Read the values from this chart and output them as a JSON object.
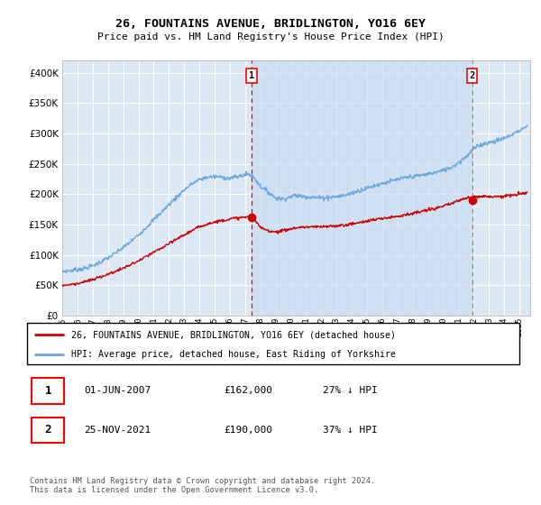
{
  "title": "26, FOUNTAINS AVENUE, BRIDLINGTON, YO16 6EY",
  "subtitle": "Price paid vs. HM Land Registry's House Price Index (HPI)",
  "plot_bg_color": "#dce9f5",
  "hpi_color": "#6fa8dc",
  "price_color": "#cc0000",
  "shade_color": "#c5d9ef",
  "ylim": [
    0,
    420000
  ],
  "yticks": [
    0,
    50000,
    100000,
    150000,
    200000,
    250000,
    300000,
    350000,
    400000
  ],
  "xlim_start": 1995.0,
  "xlim_end": 2025.7,
  "marker1_x": 2007.42,
  "marker1_y": 162000,
  "marker2_x": 2021.9,
  "marker2_y": 190000,
  "legend_label_price": "26, FOUNTAINS AVENUE, BRIDLINGTON, YO16 6EY (detached house)",
  "legend_label_hpi": "HPI: Average price, detached house, East Riding of Yorkshire",
  "footer": "Contains HM Land Registry data © Crown copyright and database right 2024.\nThis data is licensed under the Open Government Licence v3.0.",
  "table_row1": [
    "1",
    "01-JUN-2007",
    "£162,000",
    "27% ↓ HPI"
  ],
  "table_row2": [
    "2",
    "25-NOV-2021",
    "£190,000",
    "37% ↓ HPI"
  ],
  "hpi_years": [
    1995,
    1995.5,
    1996,
    1996.5,
    1997,
    1997.5,
    1998,
    1998.5,
    1999,
    1999.5,
    2000,
    2000.5,
    2001,
    2001.5,
    2002,
    2002.5,
    2003,
    2003.5,
    2004,
    2004.5,
    2005,
    2005.5,
    2006,
    2006.5,
    2007,
    2007.2,
    2007.4,
    2007.6,
    2007.8,
    2008,
    2008.5,
    2009,
    2009.5,
    2010,
    2010.3,
    2010.6,
    2011,
    2011.5,
    2012,
    2012.5,
    2013,
    2013.5,
    2014,
    2014.5,
    2015,
    2015.5,
    2016,
    2016.5,
    2017,
    2017.5,
    2018,
    2018.5,
    2019,
    2019.5,
    2020,
    2020.5,
    2021,
    2021.5,
    2022,
    2022.5,
    2023,
    2023.5,
    2024,
    2024.5,
    2025,
    2025.5
  ],
  "hpi_vals": [
    73000,
    74000,
    76000,
    78000,
    82000,
    88000,
    95000,
    103000,
    112000,
    122000,
    133000,
    145000,
    158000,
    170000,
    183000,
    195000,
    207000,
    217000,
    224000,
    228000,
    229000,
    228000,
    226000,
    229000,
    232000,
    233000,
    231000,
    227000,
    220000,
    213000,
    204000,
    194000,
    192000,
    196000,
    198000,
    197000,
    196000,
    195000,
    194000,
    195000,
    196000,
    198000,
    202000,
    206000,
    210000,
    214000,
    218000,
    221000,
    224000,
    227000,
    229000,
    231000,
    233000,
    236000,
    239000,
    244000,
    252000,
    262000,
    275000,
    282000,
    285000,
    288000,
    292000,
    298000,
    305000,
    312000
  ],
  "price_years": [
    1995,
    1995.5,
    1996,
    1996.5,
    1997,
    1997.5,
    1998,
    1998.5,
    1999,
    1999.5,
    2000,
    2000.5,
    2001,
    2001.5,
    2002,
    2002.5,
    2003,
    2003.5,
    2004,
    2004.5,
    2005,
    2005.5,
    2006,
    2006.5,
    2007,
    2007.2,
    2007.4,
    2007.6,
    2007.8,
    2008,
    2008.5,
    2009,
    2009.5,
    2010,
    2010.5,
    2011,
    2011.5,
    2012,
    2012.5,
    2013,
    2013.5,
    2014,
    2014.5,
    2015,
    2015.5,
    2016,
    2016.5,
    2017,
    2017.5,
    2018,
    2018.5,
    2019,
    2019.5,
    2020,
    2020.5,
    2021,
    2021.5,
    2022,
    2022.5,
    2023,
    2023.5,
    2024,
    2024.5,
    2025,
    2025.5
  ],
  "price_vals": [
    50000,
    51000,
    53000,
    56000,
    59000,
    64000,
    68000,
    73000,
    78000,
    84000,
    90000,
    97000,
    104000,
    111000,
    118000,
    126000,
    133000,
    140000,
    146000,
    151000,
    154000,
    157000,
    159000,
    161000,
    162000,
    162500,
    162000,
    158000,
    152000,
    145000,
    140000,
    138000,
    140000,
    143000,
    145000,
    146000,
    146000,
    146000,
    147000,
    148000,
    149000,
    151000,
    153000,
    156000,
    158000,
    160000,
    162000,
    164000,
    166000,
    168000,
    171000,
    174000,
    177000,
    180000,
    184000,
    190000,
    193000,
    196000,
    197000,
    196000,
    196000,
    197000,
    198000,
    200000,
    203000
  ]
}
